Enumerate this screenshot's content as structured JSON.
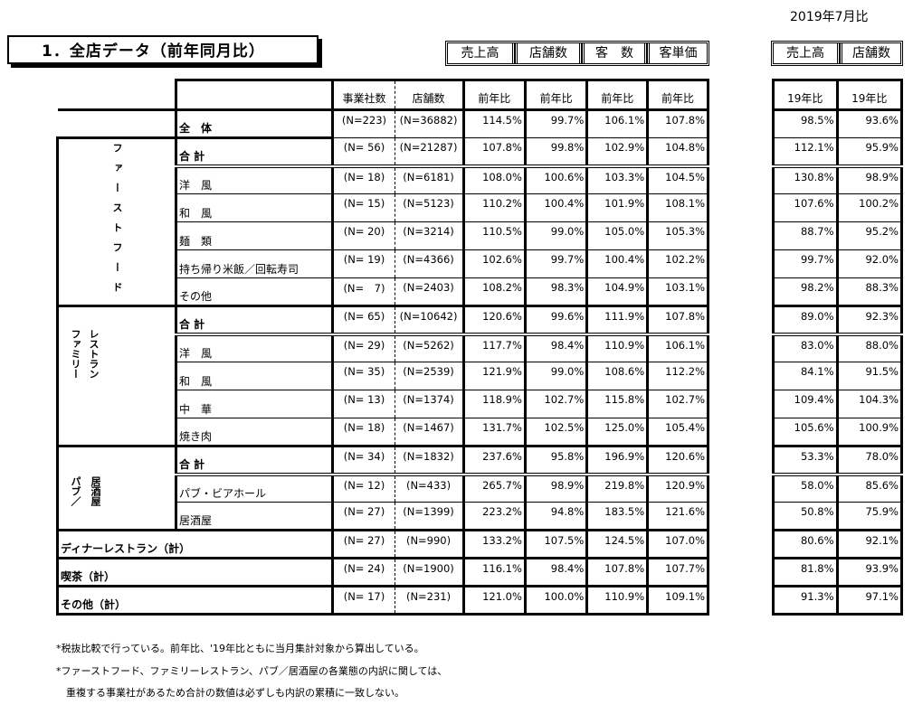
{
  "date": "2019年7月比",
  "title": "1．全店データ（前年同月比）",
  "header_groups": [
    "売上高",
    "店舗数",
    "客　数",
    "客単価"
  ],
  "header_groups_right": [
    "売上高",
    "店舗数"
  ],
  "columns": {
    "companies": "事業社数",
    "stores": "店舗数",
    "yoy": "前年比",
    "vs19": "19年比"
  },
  "groups": {
    "fastfood": "ファーストフード",
    "family_a": "ファミリー",
    "family_b": "レストラン",
    "pub_a": "パブ／",
    "pub_b": "居酒屋"
  },
  "rows": [
    {
      "label": "全　体",
      "companies": "(N=223)",
      "stores": "(N=36882)",
      "sales": "114.5%",
      "store_count": "99.7%",
      "customers": "106.1%",
      "unit_price": "107.8%",
      "sales19": "98.5%",
      "stores19": "93.6%"
    },
    {
      "label": "合 計",
      "companies": "(N= 56)",
      "stores": "(N=21287)",
      "sales": "107.8%",
      "store_count": "99.8%",
      "customers": "102.9%",
      "unit_price": "104.8%",
      "sales19": "112.1%",
      "stores19": "95.9%"
    },
    {
      "label": "洋　風",
      "companies": "(N= 18)",
      "stores": "(N=6181)",
      "sales": "108.0%",
      "store_count": "100.6%",
      "customers": "103.3%",
      "unit_price": "104.5%",
      "sales19": "130.8%",
      "stores19": "98.9%"
    },
    {
      "label": "和　風",
      "companies": "(N= 15)",
      "stores": "(N=5123)",
      "sales": "110.2%",
      "store_count": "100.4%",
      "customers": "101.9%",
      "unit_price": "108.1%",
      "sales19": "107.6%",
      "stores19": "100.2%"
    },
    {
      "label": "麺　類",
      "companies": "(N= 20)",
      "stores": "(N=3214)",
      "sales": "110.5%",
      "store_count": "99.0%",
      "customers": "105.0%",
      "unit_price": "105.3%",
      "sales19": "88.7%",
      "stores19": "95.2%"
    },
    {
      "label": "持ち帰り米飯／回転寿司",
      "companies": "(N= 19)",
      "stores": "(N=4366)",
      "sales": "102.6%",
      "store_count": "99.7%",
      "customers": "100.4%",
      "unit_price": "102.2%",
      "sales19": "99.7%",
      "stores19": "92.0%"
    },
    {
      "label": "その他",
      "companies": "(N=　7)",
      "stores": "(N=2403)",
      "sales": "108.2%",
      "store_count": "98.3%",
      "customers": "104.9%",
      "unit_price": "103.1%",
      "sales19": "98.2%",
      "stores19": "88.3%"
    },
    {
      "label": "合 計",
      "companies": "(N= 65)",
      "stores": "(N=10642)",
      "sales": "120.6%",
      "store_count": "99.6%",
      "customers": "111.9%",
      "unit_price": "107.8%",
      "sales19": "89.0%",
      "stores19": "92.3%"
    },
    {
      "label": "洋　風",
      "companies": "(N= 29)",
      "stores": "(N=5262)",
      "sales": "117.7%",
      "store_count": "98.4%",
      "customers": "110.9%",
      "unit_price": "106.1%",
      "sales19": "83.0%",
      "stores19": "88.0%"
    },
    {
      "label": "和　風",
      "companies": "(N= 35)",
      "stores": "(N=2539)",
      "sales": "121.9%",
      "store_count": "99.0%",
      "customers": "108.6%",
      "unit_price": "112.2%",
      "sales19": "84.1%",
      "stores19": "91.5%"
    },
    {
      "label": "中　華",
      "companies": "(N= 13)",
      "stores": "(N=1374)",
      "sales": "118.9%",
      "store_count": "102.7%",
      "customers": "115.8%",
      "unit_price": "102.7%",
      "sales19": "109.4%",
      "stores19": "104.3%"
    },
    {
      "label": "焼き肉",
      "companies": "(N= 18)",
      "stores": "(N=1467)",
      "sales": "131.7%",
      "store_count": "102.5%",
      "customers": "125.0%",
      "unit_price": "105.4%",
      "sales19": "105.6%",
      "stores19": "100.9%"
    },
    {
      "label": "合 計",
      "companies": "(N= 34)",
      "stores": "(N=1832)",
      "sales": "237.6%",
      "store_count": "95.8%",
      "customers": "196.9%",
      "unit_price": "120.6%",
      "sales19": "53.3%",
      "stores19": "78.0%"
    },
    {
      "label": "パブ・ビアホール",
      "companies": "(N= 12)",
      "stores": "(N=433)",
      "sales": "265.7%",
      "store_count": "98.9%",
      "customers": "219.8%",
      "unit_price": "120.9%",
      "sales19": "58.0%",
      "stores19": "85.6%"
    },
    {
      "label": "居酒屋",
      "companies": "(N= 27)",
      "stores": "(N=1399)",
      "sales": "223.2%",
      "store_count": "94.8%",
      "customers": "183.5%",
      "unit_price": "121.6%",
      "sales19": "50.8%",
      "stores19": "75.9%"
    },
    {
      "label": "ディナーレストラン（計）",
      "companies": "(N= 27)",
      "stores": "(N=990)",
      "sales": "133.2%",
      "store_count": "107.5%",
      "customers": "124.5%",
      "unit_price": "107.0%",
      "sales19": "80.6%",
      "stores19": "92.1%"
    },
    {
      "label": "喫茶（計）",
      "companies": "(N= 24)",
      "stores": "(N=1900)",
      "sales": "116.1%",
      "store_count": "98.4%",
      "customers": "107.8%",
      "unit_price": "107.7%",
      "sales19": "81.8%",
      "stores19": "93.9%"
    },
    {
      "label": "その他（計）",
      "companies": "(N= 17)",
      "stores": "(N=231)",
      "sales": "121.0%",
      "store_count": "100.0%",
      "customers": "110.9%",
      "unit_price": "109.1%",
      "sales19": "91.3%",
      "stores19": "97.1%"
    }
  ],
  "notes": [
    "*税抜比較で行っている。前年比、'19年比ともに当月集計対象から算出している。",
    "*ファーストフード、ファミリーレストラン、パブ／居酒屋の各業態の内訳に関しては、",
    "　重複する事業社があるため合計の数値は必ずしも内訳の累積に一致しない。"
  ]
}
